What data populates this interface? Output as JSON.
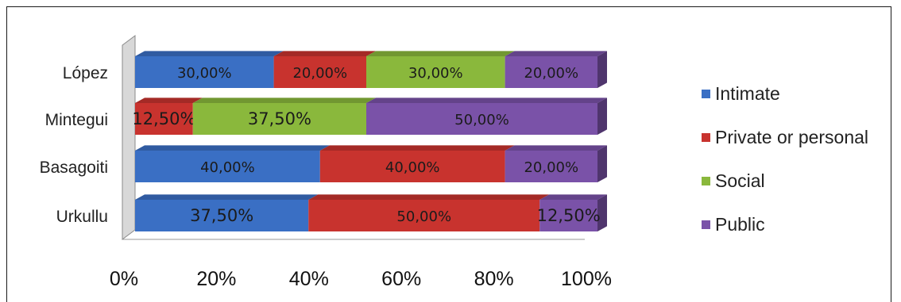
{
  "chart_data": {
    "type": "bar",
    "orientation": "horizontal",
    "stacked": "percent",
    "title": "",
    "xlabel": "",
    "ylabel": "",
    "xlim": [
      0,
      100
    ],
    "x_ticks": [
      "0%",
      "20%",
      "40%",
      "60%",
      "80%",
      "100%"
    ],
    "categories": [
      "López",
      "Mintegui",
      "Basagoiti",
      "Urkullu"
    ],
    "series": [
      {
        "name": "Intimate",
        "color": "#3a6fc4",
        "values": [
          30,
          0,
          40,
          37.5
        ],
        "labels": [
          "30,00%",
          "",
          "40,00%",
          "37,50%"
        ]
      },
      {
        "name": "Private or personal",
        "color": "#c8332e",
        "values": [
          20,
          12.5,
          40,
          50
        ],
        "labels": [
          "20,00%",
          "12,50%",
          "40,00%",
          "50,00%"
        ]
      },
      {
        "name": "Social",
        "color": "#8ab83c",
        "values": [
          30,
          37.5,
          0,
          0
        ],
        "labels": [
          "30,00%",
          "37,50%",
          "",
          ""
        ]
      },
      {
        "name": "Public",
        "color": "#7a52a8",
        "values": [
          20,
          50,
          20,
          12.5
        ],
        "labels": [
          "20,00%",
          "50,00%",
          "20,00%",
          "12,50%"
        ]
      }
    ],
    "legend": "right",
    "grid": false
  }
}
